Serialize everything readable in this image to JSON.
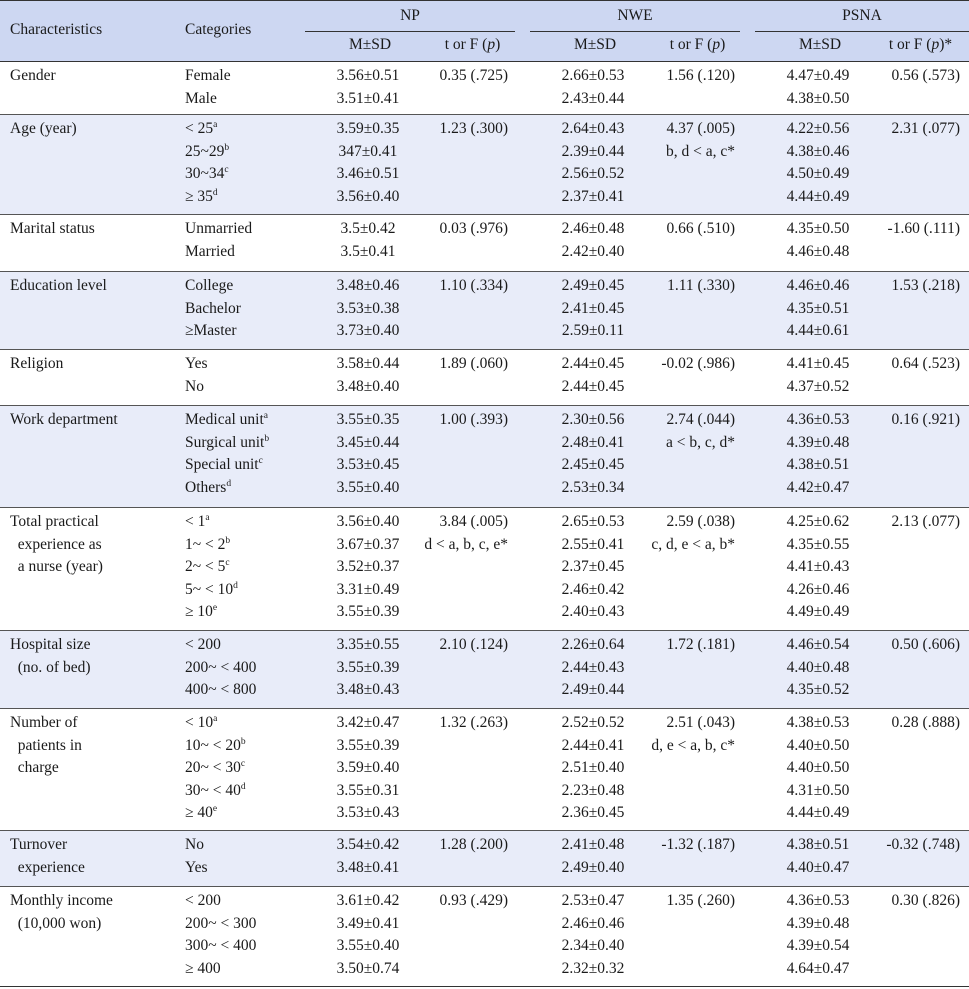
{
  "header": {
    "characteristics": "Characteristics",
    "categories": "Categories",
    "groups": [
      "NP",
      "NWE",
      "PSNA"
    ],
    "ms": "M±SD",
    "tf": [
      "t or F (",
      "p",
      ")"
    ],
    "tf_star": "*"
  },
  "rows": [
    {
      "char": [
        "Gender"
      ],
      "cats": [
        [
          "Female",
          ""
        ],
        [
          "Male",
          ""
        ]
      ],
      "np_ms": [
        "3.56±0.51",
        "3.51±0.41"
      ],
      "np_tf": [
        "0.35 (.725)"
      ],
      "nwe_ms": [
        "2.66±0.53",
        "2.43±0.44"
      ],
      "nwe_tf": [
        "1.56 (.120)"
      ],
      "psna_ms": [
        "4.47±0.49",
        "4.38±0.50"
      ],
      "psna_tf": [
        "0.56 (.573)"
      ]
    },
    {
      "char": [
        "Age (year)"
      ],
      "cats": [
        [
          "< 25",
          "a"
        ],
        [
          "25~29",
          "b"
        ],
        [
          "30~34",
          "c"
        ],
        [
          "≥ 35",
          "d"
        ]
      ],
      "np_ms": [
        "3.59±0.35",
        "347±0.41",
        "3.46±0.51",
        "3.56±0.40"
      ],
      "np_tf": [
        "1.23 (.300)"
      ],
      "nwe_ms": [
        "2.64±0.43",
        "2.39±0.44",
        "2.56±0.52",
        "2.37±0.41"
      ],
      "nwe_tf": [
        "4.37 (.005)",
        "b, d < a, c*"
      ],
      "psna_ms": [
        "4.22±0.56",
        "4.38±0.46",
        "4.50±0.49",
        "4.44±0.49"
      ],
      "psna_tf": [
        "2.31 (.077)"
      ]
    },
    {
      "char": [
        "Marital status"
      ],
      "cats": [
        [
          "Unmarried",
          ""
        ],
        [
          "Married",
          ""
        ]
      ],
      "np_ms": [
        "3.5±0.42",
        "3.5±0.41"
      ],
      "np_tf": [
        "0.03 (.976)"
      ],
      "nwe_ms": [
        "2.46±0.48",
        "2.42±0.40"
      ],
      "nwe_tf": [
        "0.66 (.510)"
      ],
      "psna_ms": [
        "4.35±0.50",
        "4.46±0.48"
      ],
      "psna_tf": [
        "-1.60 (.111)"
      ]
    },
    {
      "char": [
        "Education level"
      ],
      "cats": [
        [
          "College",
          ""
        ],
        [
          "Bachelor",
          ""
        ],
        [
          "≥Master",
          ""
        ]
      ],
      "np_ms": [
        "3.48±0.46",
        "3.53±0.38",
        "3.73±0.40"
      ],
      "np_tf": [
        "1.10 (.334)"
      ],
      "nwe_ms": [
        "2.49±0.45",
        "2.41±0.45",
        "2.59±0.11"
      ],
      "nwe_tf": [
        "1.11 (.330)"
      ],
      "psna_ms": [
        "4.46±0.46",
        "4.35±0.51",
        "4.44±0.61"
      ],
      "psna_tf": [
        "1.53 (.218)"
      ]
    },
    {
      "char": [
        "Religion"
      ],
      "cats": [
        [
          "Yes",
          ""
        ],
        [
          "No",
          ""
        ]
      ],
      "np_ms": [
        "3.58±0.44",
        "3.48±0.40"
      ],
      "np_tf": [
        "1.89 (.060)"
      ],
      "nwe_ms": [
        "2.44±0.45",
        "2.44±0.45"
      ],
      "nwe_tf": [
        "-0.02 (.986)"
      ],
      "psna_ms": [
        "4.41±0.45",
        "4.37±0.52"
      ],
      "psna_tf": [
        "0.64 (.523)"
      ]
    },
    {
      "char": [
        "Work department"
      ],
      "cats": [
        [
          "Medical unit",
          "a"
        ],
        [
          "Surgical unit",
          "b"
        ],
        [
          "Special unit",
          "c"
        ],
        [
          "Others",
          "d"
        ]
      ],
      "np_ms": [
        "3.55±0.35",
        "3.45±0.44",
        "3.53±0.45",
        "3.55±0.40"
      ],
      "np_tf": [
        "1.00 (.393)"
      ],
      "nwe_ms": [
        "2.30±0.56",
        "2.48±0.41",
        "2.45±0.45",
        "2.53±0.34"
      ],
      "nwe_tf": [
        "2.74 (.044)",
        "a < b, c, d*"
      ],
      "psna_ms": [
        "4.36±0.53",
        "4.39±0.48",
        "4.38±0.51",
        "4.42±0.47"
      ],
      "psna_tf": [
        "0.16 (.921)"
      ]
    },
    {
      "char": [
        "Total practical",
        "  experience as",
        "  a nurse (year)"
      ],
      "cats": [
        [
          "< 1",
          "a"
        ],
        [
          "1~ < 2",
          "b"
        ],
        [
          "2~ < 5",
          "c"
        ],
        [
          "5~ < 10",
          "d"
        ],
        [
          "≥ 10",
          "e"
        ]
      ],
      "np_ms": [
        "3.56±0.40",
        "3.67±0.37",
        "3.52±0.37",
        "3.31±0.49",
        "3.55±0.39"
      ],
      "np_tf": [
        "3.84 (.005)",
        "d < a, b, c, e*"
      ],
      "nwe_ms": [
        "2.65±0.53",
        "2.55±0.41",
        "2.37±0.45",
        "2.46±0.42",
        "2.40±0.43"
      ],
      "nwe_tf": [
        "2.59 (.038)",
        "c, d, e < a, b*"
      ],
      "psna_ms": [
        "4.25±0.62",
        "4.35±0.55",
        "4.41±0.43",
        "4.26±0.46",
        "4.49±0.49"
      ],
      "psna_tf": [
        "2.13 (.077)"
      ]
    },
    {
      "char": [
        "Hospital size",
        "  (no. of bed)"
      ],
      "cats": [
        [
          "< 200",
          ""
        ],
        [
          "200~ < 400",
          ""
        ],
        [
          "400~ < 800",
          ""
        ]
      ],
      "np_ms": [
        "3.35±0.55",
        "3.55±0.39",
        "3.48±0.43"
      ],
      "np_tf": [
        "2.10 (.124)"
      ],
      "nwe_ms": [
        "2.26±0.64",
        "2.44±0.43",
        "2.49±0.44"
      ],
      "nwe_tf": [
        "1.72 (.181)"
      ],
      "psna_ms": [
        "4.46±0.54",
        "4.40±0.48",
        "4.35±0.52"
      ],
      "psna_tf": [
        "0.50 (.606)"
      ]
    },
    {
      "char": [
        "Number of",
        "  patients in",
        "  charge"
      ],
      "cats": [
        [
          "< 10",
          "a"
        ],
        [
          "10~ < 20",
          "b"
        ],
        [
          "20~ < 30",
          "c"
        ],
        [
          "30~ < 40",
          "d"
        ],
        [
          "≥ 40",
          "e"
        ]
      ],
      "np_ms": [
        "3.42±0.47",
        "3.55±0.39",
        "3.59±0.40",
        "3.55±0.31",
        "3.53±0.43"
      ],
      "np_tf": [
        "1.32 (.263)"
      ],
      "nwe_ms": [
        "2.52±0.52",
        "2.44±0.41",
        "2.51±0.40",
        "2.23±0.48",
        "2.36±0.45"
      ],
      "nwe_tf": [
        "2.51 (.043)",
        "d, e < a, b, c*"
      ],
      "psna_ms": [
        "4.38±0.53",
        "4.40±0.50",
        "4.40±0.50",
        "4.31±0.50",
        "4.44±0.49"
      ],
      "psna_tf": [
        "0.28 (.888)"
      ]
    },
    {
      "char": [
        "Turnover",
        "  experience"
      ],
      "cats": [
        [
          "No",
          ""
        ],
        [
          "Yes",
          ""
        ]
      ],
      "np_ms": [
        "3.54±0.42",
        "3.48±0.41"
      ],
      "np_tf": [
        "1.28 (.200)"
      ],
      "nwe_ms": [
        "2.41±0.48",
        "2.49±0.40"
      ],
      "nwe_tf": [
        "-1.32 (.187)"
      ],
      "psna_ms": [
        "4.38±0.51",
        "4.40±0.47"
      ],
      "psna_tf": [
        "-0.32 (.748)"
      ]
    },
    {
      "char": [
        "Monthly income",
        "  (10,000 won)"
      ],
      "cats": [
        [
          "< 200",
          ""
        ],
        [
          "200~ < 300",
          ""
        ],
        [
          "300~ < 400",
          ""
        ],
        [
          "≥ 400",
          ""
        ]
      ],
      "np_ms": [
        "3.61±0.42",
        "3.49±0.41",
        "3.55±0.40",
        "3.50±0.74"
      ],
      "np_tf": [
        "0.93 (.429)"
      ],
      "nwe_ms": [
        "2.53±0.47",
        "2.46±0.46",
        "2.34±0.40",
        "2.32±0.32"
      ],
      "nwe_tf": [
        "1.35 (.260)"
      ],
      "psna_ms": [
        "4.36±0.53",
        "4.39±0.48",
        "4.39±0.54",
        "4.64±0.47"
      ],
      "psna_tf": [
        "0.30 (.826)"
      ]
    }
  ]
}
